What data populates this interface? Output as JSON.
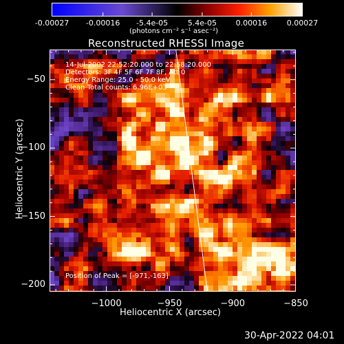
{
  "colorbar": {
    "ticks": [
      "-0.00027",
      "-0.00016",
      "-5.4e-05",
      "5.4e-05",
      "0.00016",
      "0.00027"
    ],
    "tick_values": [
      -0.00027,
      -0.00016,
      -5.4e-05,
      5.4e-05,
      0.00016,
      0.00027
    ],
    "range": [
      -0.00027,
      0.00027
    ],
    "unit_label": "(photons cm⁻² s⁻¹ asec⁻²)"
  },
  "chart_data": {
    "type": "heatmap",
    "title": "Reconstructed RHESSI Image",
    "xlabel": "Heliocentric X (arcsec)",
    "ylabel": "Heliocentric Y (arcsec)",
    "xlim": [
      -1045,
      -850
    ],
    "ylim": [
      -205,
      -28
    ],
    "x_ticks": [
      -1000,
      -950,
      -900,
      -850
    ],
    "y_ticks": [
      -50,
      -100,
      -150,
      -200
    ],
    "x_tick_labels": [
      "−1000",
      "−950",
      "−900",
      "−850"
    ],
    "y_tick_labels": [
      "−50",
      "−100",
      "−150",
      "−200"
    ],
    "limb_line": [
      [
        -945,
        -28
      ],
      [
        -920,
        -205
      ]
    ],
    "annotations": {
      "time": "14-Jul-2002 22:52:20.000 to 22:58:20.000",
      "detectors": "Detectors: 3F 4F 5F 6F 7F 8F, Att 0",
      "energy": "Energy Range: 25.0 - 50.0 keV",
      "method": "Clean     Total counts: 6.96E+03",
      "peak": "Position of Peak = [-971,-163]"
    }
  },
  "footer": {
    "date": "30-Apr-2022 04:01"
  },
  "colors": {
    "background": "#000000",
    "text": "#ffffff"
  }
}
